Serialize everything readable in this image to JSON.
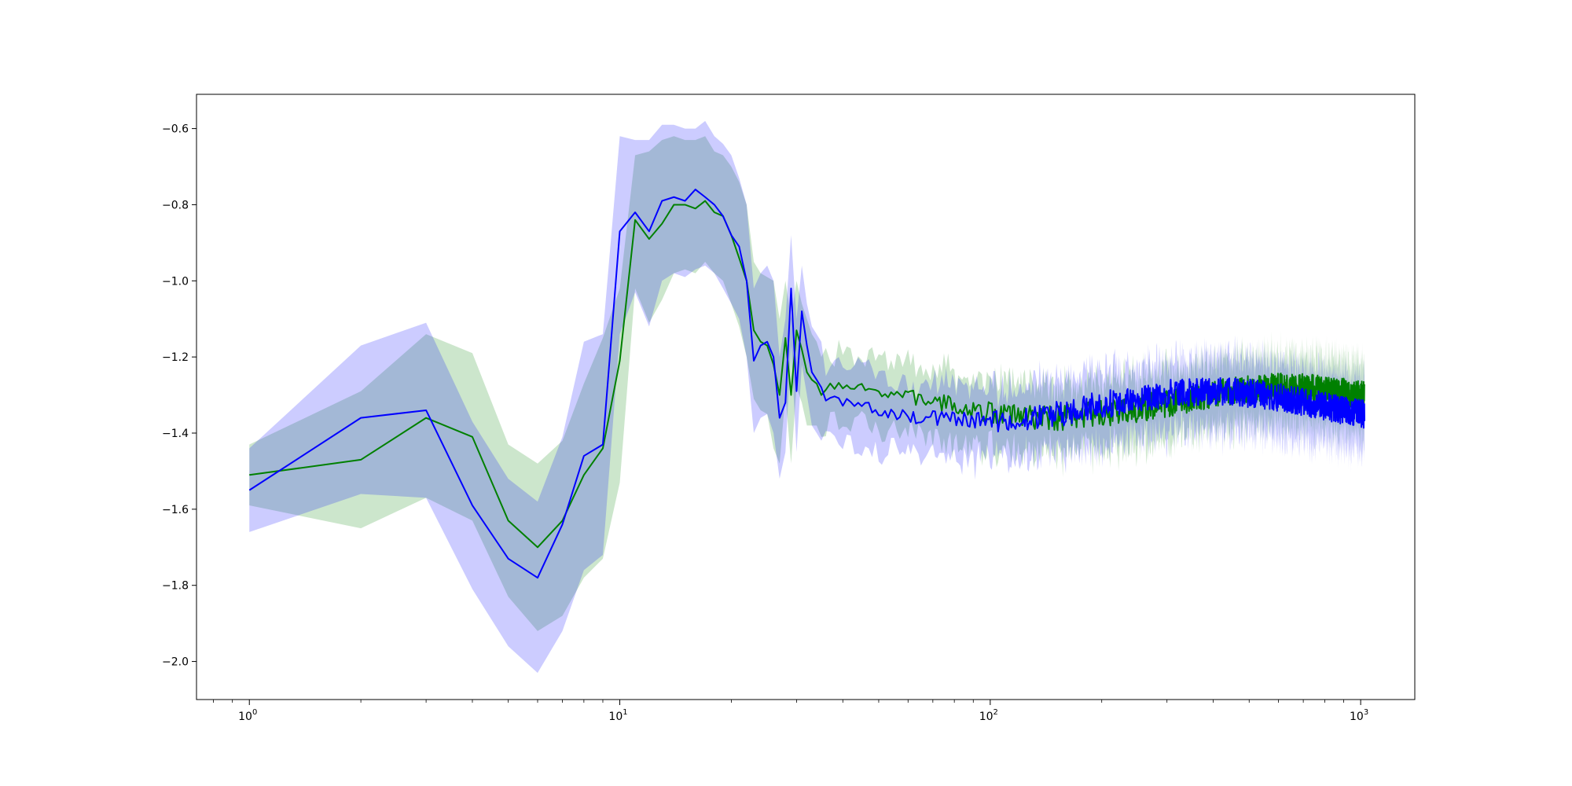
{
  "chart_data": {
    "type": "line",
    "xscale": "log",
    "xlim": [
      0.72,
      1400
    ],
    "ylim": [
      -2.1,
      -0.51
    ],
    "grid": false,
    "x_ticks": [
      {
        "base": "10",
        "exp": "0",
        "value": 1
      },
      {
        "base": "10",
        "exp": "1",
        "value": 10
      },
      {
        "base": "10",
        "exp": "2",
        "value": 100
      },
      {
        "base": "10",
        "exp": "3",
        "value": 1000
      }
    ],
    "y_ticks": [
      {
        "label": "−0.6",
        "value": -0.6
      },
      {
        "label": "−0.8",
        "value": -0.8
      },
      {
        "label": "−1.0",
        "value": -1.0
      },
      {
        "label": "−1.2",
        "value": -1.2
      },
      {
        "label": "−1.4",
        "value": -1.4
      },
      {
        "label": "−1.6",
        "value": -1.6
      },
      {
        "label": "−1.8",
        "value": -1.8
      },
      {
        "label": "−2.0",
        "value": -2.0
      }
    ],
    "tail_range": [
      36,
      1024
    ],
    "series": [
      {
        "color": "#008000",
        "band_color": "#008000",
        "x": [
          1,
          2,
          3,
          4,
          5,
          6,
          7,
          8,
          9,
          10,
          11,
          12,
          13,
          14,
          15,
          16,
          17,
          18,
          19,
          20,
          21,
          22,
          23,
          24,
          25,
          26,
          27,
          28,
          29,
          30,
          31,
          32,
          33,
          34,
          35
        ],
        "values": [
          -1.51,
          -1.47,
          -1.36,
          -1.41,
          -1.63,
          -1.7,
          -1.63,
          -1.51,
          -1.44,
          -1.21,
          -0.84,
          -0.89,
          -0.85,
          -0.8,
          -0.8,
          -0.81,
          -0.79,
          -0.82,
          -0.83,
          -0.88,
          -0.94,
          -1.0,
          -1.13,
          -1.16,
          -1.17,
          -1.22,
          -1.3,
          -1.15,
          -1.3,
          -1.13,
          -1.18,
          -1.24,
          -1.26,
          -1.27,
          -1.3
        ],
        "upper": [
          -1.43,
          -1.29,
          -1.14,
          -1.19,
          -1.43,
          -1.48,
          -1.42,
          -1.27,
          -1.15,
          -1.02,
          -0.67,
          -0.66,
          -0.63,
          -0.62,
          -0.63,
          -0.63,
          -0.62,
          -0.66,
          -0.67,
          -0.7,
          -0.74,
          -0.8,
          -0.95,
          -0.98,
          -0.99,
          -1.0,
          -1.1,
          -1.0,
          -1.1,
          -1.0,
          -1.06,
          -1.1,
          -1.14,
          -1.16,
          -1.2
        ],
        "lower": [
          -1.59,
          -1.65,
          -1.57,
          -1.63,
          -1.83,
          -1.92,
          -1.88,
          -1.78,
          -1.73,
          -1.53,
          -1.02,
          -1.11,
          -1.05,
          -0.98,
          -0.97,
          -0.98,
          -0.95,
          -0.98,
          -1.0,
          -1.06,
          -1.12,
          -1.2,
          -1.31,
          -1.34,
          -1.35,
          -1.44,
          -1.48,
          -1.3,
          -1.48,
          -1.28,
          -1.32,
          -1.38,
          -1.38,
          -1.38,
          -1.41
        ],
        "tail_mean": -1.32,
        "tail_band_half": 0.085
      },
      {
        "color": "#0000ff",
        "band_color": "#0000ff",
        "x": [
          1,
          2,
          3,
          4,
          5,
          6,
          7,
          8,
          9,
          10,
          11,
          12,
          13,
          14,
          15,
          16,
          17,
          18,
          19,
          20,
          21,
          22,
          23,
          24,
          25,
          26,
          27,
          28,
          29,
          30,
          31,
          32,
          33,
          34,
          35
        ],
        "values": [
          -1.55,
          -1.36,
          -1.34,
          -1.59,
          -1.73,
          -1.78,
          -1.64,
          -1.46,
          -1.43,
          -0.87,
          -0.82,
          -0.87,
          -0.79,
          -0.78,
          -0.79,
          -0.76,
          -0.78,
          -0.8,
          -0.83,
          -0.88,
          -0.91,
          -1.0,
          -1.21,
          -1.17,
          -1.16,
          -1.2,
          -1.36,
          -1.32,
          -1.02,
          -1.29,
          -1.08,
          -1.17,
          -1.24,
          -1.26,
          -1.28
        ],
        "upper": [
          -1.44,
          -1.17,
          -1.11,
          -1.37,
          -1.52,
          -1.58,
          -1.41,
          -1.16,
          -1.14,
          -0.62,
          -0.63,
          -0.63,
          -0.59,
          -0.59,
          -0.6,
          -0.6,
          -0.58,
          -0.62,
          -0.64,
          -0.67,
          -0.73,
          -0.8,
          -1.02,
          -0.98,
          -0.96,
          -1.0,
          -1.2,
          -1.1,
          -0.88,
          -1.1,
          -0.96,
          -1.06,
          -1.12,
          -1.14,
          -1.16
        ],
        "lower": [
          -1.66,
          -1.56,
          -1.57,
          -1.81,
          -1.96,
          -2.03,
          -1.92,
          -1.76,
          -1.72,
          -1.14,
          -1.03,
          -1.12,
          -1.0,
          -0.98,
          -0.99,
          -0.97,
          -0.96,
          -0.98,
          -1.02,
          -1.06,
          -1.1,
          -1.2,
          -1.4,
          -1.36,
          -1.35,
          -1.4,
          -1.52,
          -1.45,
          -1.17,
          -1.45,
          -1.22,
          -1.3,
          -1.38,
          -1.4,
          -1.42
        ],
        "tail_mean": -1.33,
        "tail_band_half": 0.09
      }
    ]
  }
}
